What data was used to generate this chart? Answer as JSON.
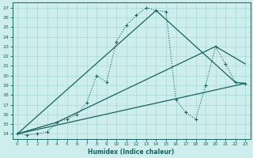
{
  "xlabel": "Humidex (Indice chaleur)",
  "xlim": [
    -0.5,
    23.5
  ],
  "ylim": [
    13.5,
    27.5
  ],
  "xticks": [
    0,
    1,
    2,
    3,
    4,
    5,
    6,
    7,
    8,
    9,
    10,
    11,
    12,
    13,
    14,
    15,
    16,
    17,
    18,
    19,
    20,
    21,
    22,
    23
  ],
  "yticks": [
    14,
    15,
    16,
    17,
    18,
    19,
    20,
    21,
    22,
    23,
    24,
    25,
    26,
    27
  ],
  "bg_color": "#ceeeed",
  "grid_color": "#a8d8d8",
  "line_color": "#1a6060",
  "main_x": [
    0,
    1,
    2,
    3,
    4,
    5,
    6,
    7,
    8,
    9,
    10,
    11,
    12,
    13,
    14,
    15,
    16,
    17,
    18,
    19,
    20,
    21,
    22,
    23
  ],
  "main_y": [
    14,
    13.9,
    14.0,
    14.2,
    15.2,
    15.5,
    16.0,
    17.2,
    20.0,
    19.3,
    23.5,
    25.2,
    26.2,
    27.0,
    26.7,
    26.6,
    17.5,
    16.2,
    15.5,
    19.0,
    23.0,
    21.2,
    19.3,
    19.2
  ],
  "line2_x": [
    0,
    23
  ],
  "line2_y": [
    14,
    19.2
  ],
  "line3_x": [
    0,
    4,
    20,
    23
  ],
  "line3_y": [
    14,
    15.2,
    23.0,
    21.2
  ],
  "line4_x": [
    0,
    14,
    22,
    23
  ],
  "line4_y": [
    14,
    26.7,
    19.3,
    19.2
  ]
}
